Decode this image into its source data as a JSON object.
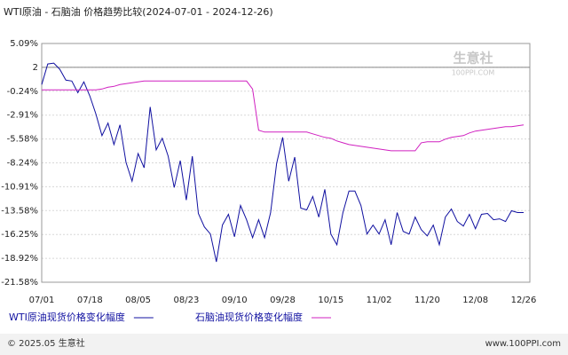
{
  "chart_data": {
    "type": "line",
    "title": "WTI原油 - 石脑油 价格趋势比较(2024-07-01 - 2024-12-26)",
    "watermark": "生意社",
    "watermark_sub": "100PPI.COM",
    "footer_left": "© 2025.05 生意社",
    "footer_right": "www.100PPI.com",
    "categories": [
      "07/01",
      null,
      null,
      null,
      null,
      null,
      null,
      null,
      "07/18",
      null,
      null,
      null,
      null,
      null,
      null,
      null,
      "08/05",
      null,
      null,
      null,
      null,
      null,
      null,
      null,
      "08/23",
      null,
      null,
      null,
      null,
      null,
      null,
      null,
      "09/10",
      null,
      null,
      null,
      null,
      null,
      null,
      null,
      "09/28",
      null,
      null,
      null,
      null,
      null,
      null,
      null,
      "10/15",
      null,
      null,
      null,
      null,
      null,
      null,
      null,
      "11/02",
      null,
      null,
      null,
      null,
      null,
      null,
      null,
      "11/20",
      null,
      null,
      null,
      null,
      null,
      null,
      null,
      "12/08",
      null,
      null,
      null,
      null,
      null,
      null,
      null,
      "12/26"
    ],
    "series": [
      {
        "name": "WTI原油现货价格变化幅度",
        "color": "#1010a0",
        "values": [
          0.5,
          2.8,
          2.9,
          2.2,
          1.0,
          0.9,
          -0.4,
          0.8,
          -0.8,
          -2.8,
          -5.2,
          -3.8,
          -6.2,
          -4.0,
          -8.2,
          -10.3,
          -7.2,
          -8.8,
          -2.0,
          -6.8,
          -5.5,
          -7.5,
          -11.0,
          -8.0,
          -12.4,
          -7.5,
          -13.9,
          -15.4,
          -16.2,
          -19.3,
          -15.2,
          -14.0,
          -16.5,
          -13.0,
          -14.6,
          -16.6,
          -14.6,
          -16.6,
          -13.8,
          -8.3,
          -5.4,
          -10.3,
          -7.6,
          -13.3,
          -13.5,
          -12.0,
          -14.3,
          -11.2,
          -16.2,
          -17.4,
          -13.8,
          -11.4,
          -11.4,
          -13.0,
          -16.2,
          -15.2,
          -16.2,
          -14.6,
          -17.4,
          -13.8,
          -15.9,
          -16.2,
          -14.3,
          -15.7,
          -16.4,
          -15.2,
          -17.4,
          -14.3,
          -13.4,
          -14.8,
          -15.3,
          -14.0,
          -15.6,
          -14.0,
          -13.9,
          -14.6,
          -14.5,
          -14.8,
          -13.6,
          -13.8,
          -13.8
        ]
      },
      {
        "name": "石脑油现货价格变化幅度",
        "color": "#d020c0",
        "values": [
          -0.1,
          -0.1,
          -0.1,
          -0.1,
          -0.1,
          -0.1,
          -0.1,
          -0.1,
          -0.1,
          -0.1,
          0.0,
          0.2,
          0.3,
          0.5,
          0.6,
          0.7,
          0.8,
          0.9,
          0.9,
          0.9,
          0.9,
          0.9,
          0.9,
          0.9,
          0.9,
          0.9,
          0.9,
          0.9,
          0.9,
          0.9,
          0.9,
          0.9,
          0.9,
          0.9,
          0.9,
          0.0,
          -4.6,
          -4.8,
          -4.8,
          -4.8,
          -4.8,
          -4.8,
          -4.8,
          -4.8,
          -4.8,
          -5.0,
          -5.2,
          -5.4,
          -5.5,
          -5.8,
          -6.0,
          -6.2,
          -6.3,
          -6.4,
          -6.5,
          -6.6,
          -6.7,
          -6.8,
          -6.9,
          -6.9,
          -6.9,
          -6.9,
          -6.9,
          -6.0,
          -5.9,
          -5.9,
          -5.9,
          -5.6,
          -5.4,
          -5.3,
          -5.2,
          -4.9,
          -4.7,
          -4.6,
          -4.5,
          -4.4,
          -4.3,
          -4.2,
          -4.2,
          -4.1,
          -4.0
        ]
      }
    ],
    "ylim": [
      -21.58,
      5.09
    ],
    "yticks": [
      {
        "value": 5.09,
        "label": "5.09%"
      },
      {
        "value": 2.42,
        "label": "2"
      },
      {
        "value": -0.24,
        "label": "-0.24%"
      },
      {
        "value": -2.91,
        "label": "-2.91%"
      },
      {
        "value": -5.58,
        "label": "-5.58%"
      },
      {
        "value": -8.24,
        "label": "-8.24%"
      },
      {
        "value": -10.91,
        "label": "-10.91%"
      },
      {
        "value": -13.58,
        "label": "-13.58%"
      },
      {
        "value": -16.25,
        "label": "-16.25%"
      },
      {
        "value": -18.92,
        "label": "-18.92%"
      },
      {
        "value": -21.58,
        "label": "-21.58%"
      }
    ],
    "grid": true
  }
}
